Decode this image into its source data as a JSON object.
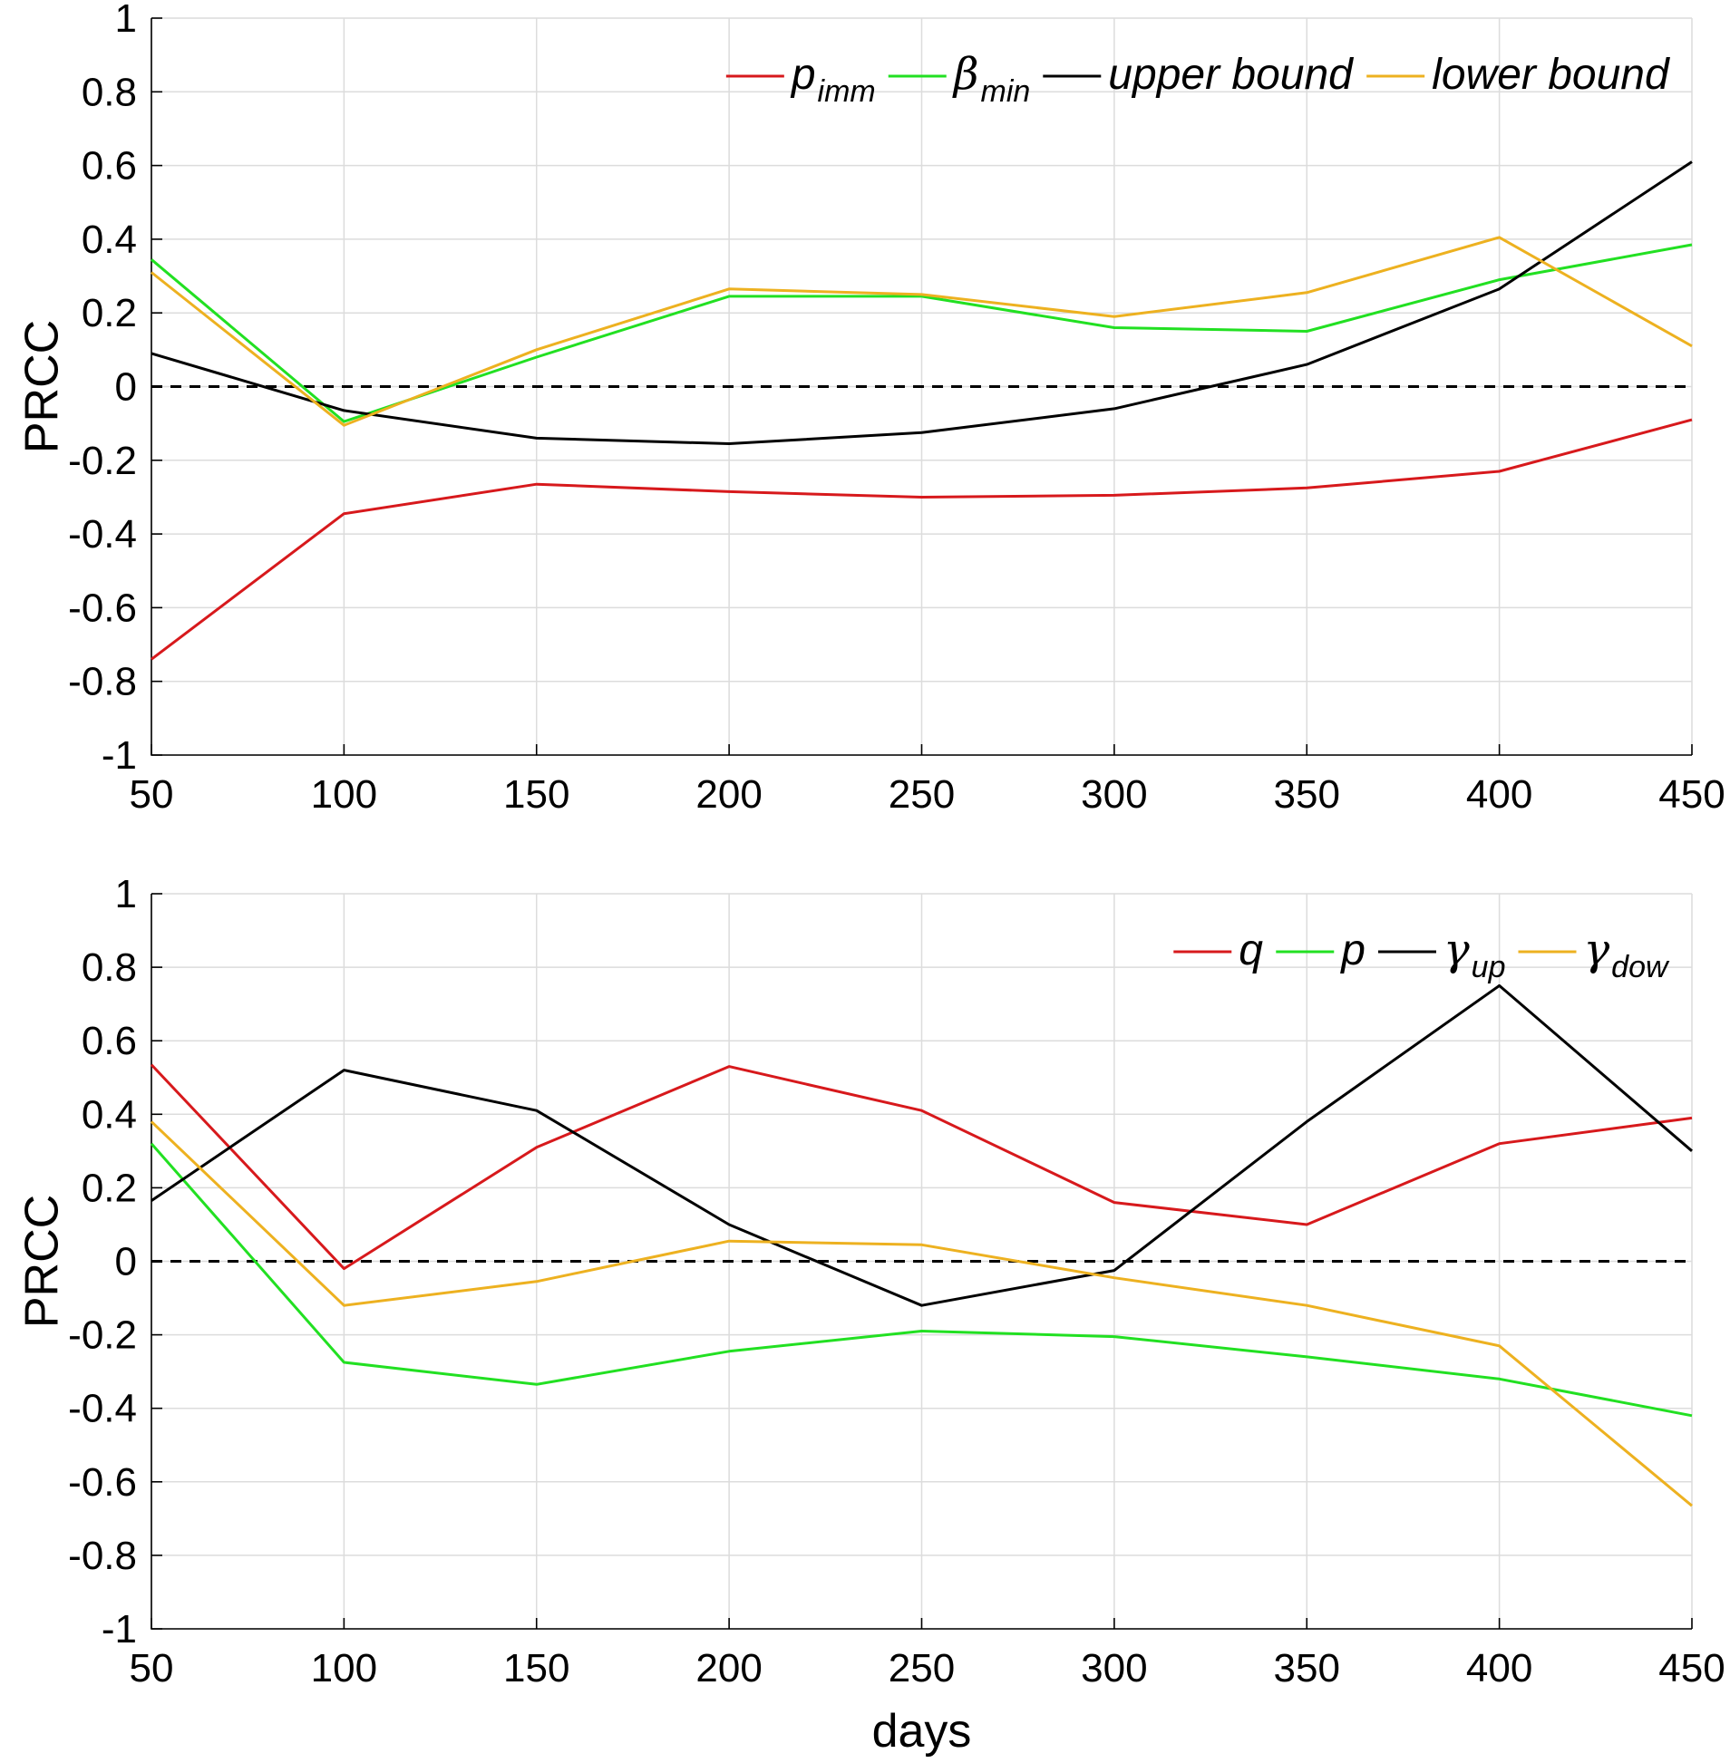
{
  "chart_data": [
    {
      "type": "line",
      "name": "top",
      "title": "",
      "xlabel": "",
      "ylabel": "PRCC",
      "xlim": [
        50,
        450
      ],
      "ylim": [
        -1,
        1
      ],
      "grid": true,
      "legend_position": "top-right",
      "x": [
        50,
        100,
        150,
        200,
        250,
        300,
        350,
        400,
        450
      ],
      "x_ticks": [
        "50",
        "100",
        "150",
        "200",
        "250",
        "300",
        "350",
        "400",
        "450"
      ],
      "y_ticks": [
        "-1",
        "-0.8",
        "-0.6",
        "-0.4",
        "-0.2",
        "0",
        "0.2",
        "0.4",
        "0.6",
        "0.8",
        "1"
      ],
      "reference_line": {
        "y": 0,
        "style": "dashed",
        "color": "#000000"
      },
      "series": [
        {
          "name": "p_imm",
          "label_main": "p",
          "label_sub": "imm",
          "greek": false,
          "color": "#d7191c",
          "values": [
            -0.74,
            -0.345,
            -0.265,
            -0.285,
            -0.3,
            -0.295,
            -0.275,
            -0.23,
            -0.09
          ]
        },
        {
          "name": "beta_min",
          "label_main": "β",
          "label_sub": "min",
          "greek": true,
          "color": "#22e022",
          "values": [
            0.345,
            -0.095,
            0.08,
            0.245,
            0.245,
            0.16,
            0.15,
            0.29,
            0.385
          ]
        },
        {
          "name": "upper bound",
          "label_main": "upper bound",
          "label_sub": "",
          "greek": false,
          "color": "#000000",
          "values": [
            0.09,
            -0.065,
            -0.14,
            -0.155,
            -0.125,
            -0.06,
            0.06,
            0.265,
            0.61
          ]
        },
        {
          "name": "lower bound",
          "label_main": "lower bound",
          "label_sub": "",
          "greek": false,
          "color": "#edb120",
          "values": [
            0.31,
            -0.105,
            0.1,
            0.265,
            0.25,
            0.19,
            0.255,
            0.405,
            0.11
          ]
        }
      ]
    },
    {
      "type": "line",
      "name": "bottom",
      "title": "",
      "xlabel": "days",
      "ylabel": "PRCC",
      "xlim": [
        50,
        450
      ],
      "ylim": [
        -1,
        1
      ],
      "grid": true,
      "legend_position": "top-right",
      "x": [
        50,
        100,
        150,
        200,
        250,
        300,
        350,
        400,
        450
      ],
      "x_ticks": [
        "50",
        "100",
        "150",
        "200",
        "250",
        "300",
        "350",
        "400",
        "450"
      ],
      "y_ticks": [
        "-1",
        "-0.8",
        "-0.6",
        "-0.4",
        "-0.2",
        "0",
        "0.2",
        "0.4",
        "0.6",
        "0.8",
        "1"
      ],
      "reference_line": {
        "y": 0,
        "style": "dashed",
        "color": "#000000"
      },
      "series": [
        {
          "name": "q",
          "label_main": "q",
          "label_sub": "",
          "greek": false,
          "color": "#d7191c",
          "values": [
            0.535,
            -0.02,
            0.31,
            0.53,
            0.41,
            0.16,
            0.1,
            0.32,
            0.39
          ]
        },
        {
          "name": "p",
          "label_main": "p",
          "label_sub": "",
          "greek": false,
          "color": "#22e022",
          "values": [
            0.32,
            -0.275,
            -0.335,
            -0.245,
            -0.19,
            -0.205,
            -0.26,
            -0.32,
            -0.42
          ]
        },
        {
          "name": "gamma_up",
          "label_main": "γ",
          "label_sub": "up",
          "greek": true,
          "color": "#000000",
          "values": [
            0.165,
            0.52,
            0.41,
            0.1,
            -0.12,
            -0.025,
            0.38,
            0.75,
            0.3
          ]
        },
        {
          "name": "gamma_dow",
          "label_main": "γ",
          "label_sub": "dow",
          "greek": true,
          "color": "#edb120",
          "values": [
            0.38,
            -0.12,
            -0.055,
            0.055,
            0.045,
            -0.045,
            -0.12,
            -0.23,
            -0.665
          ]
        }
      ]
    }
  ]
}
